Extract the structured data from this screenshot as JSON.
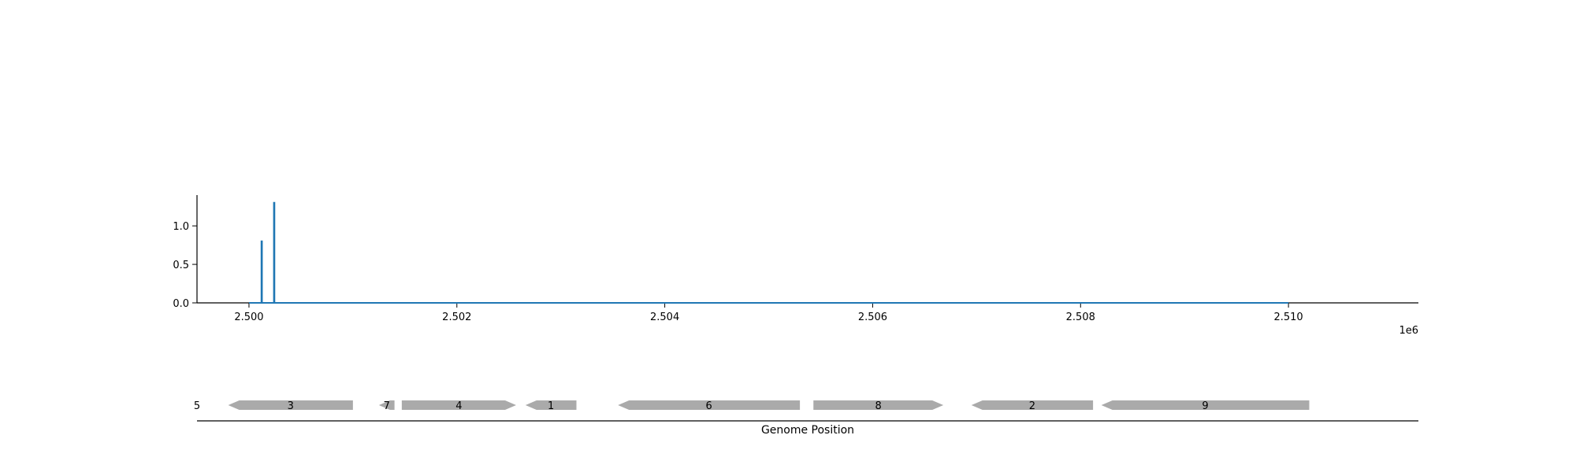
{
  "chart_data": [
    {
      "type": "line",
      "title": "",
      "xlabel": "",
      "ylabel": "",
      "xlim": [
        2499500,
        2511250
      ],
      "ylim": [
        0,
        1.4
      ],
      "grid": false,
      "x_ticks": [
        2500000,
        2502000,
        2504000,
        2506000,
        2508000,
        2510000
      ],
      "x_tick_labels": [
        "2.500",
        "2.502",
        "2.504",
        "2.506",
        "2.508",
        "2.510"
      ],
      "x_offset_label": "1e6",
      "y_ticks": [
        0.0,
        0.5,
        1.0
      ],
      "y_tick_labels": [
        "0.0",
        "0.5",
        "1.0"
      ],
      "color": "#1f77b4",
      "series": [
        {
          "x": [
            2500000,
            2500120,
            2500120,
            2500125,
            2500125,
            2500240,
            2500240,
            2500245,
            2500245,
            2510000
          ],
          "y": [
            0,
            0,
            0.8,
            0.8,
            0,
            0,
            1.3,
            1.3,
            0,
            0
          ]
        }
      ]
    },
    {
      "type": "gene-track",
      "xlabel": "Genome Position",
      "xlim": [
        2499500,
        2511250
      ],
      "color": "#aaaaaa",
      "genes": [
        {
          "label": "5",
          "start": 2499500,
          "end": 2499500,
          "strand": "+"
        },
        {
          "label": "3",
          "start": 2499800,
          "end": 2501000,
          "strand": "-"
        },
        {
          "label": "7",
          "start": 2501250,
          "end": 2501400,
          "strand": "-"
        },
        {
          "label": "4",
          "start": 2501470,
          "end": 2502570,
          "strand": "+"
        },
        {
          "label": "1",
          "start": 2502660,
          "end": 2503150,
          "strand": "-"
        },
        {
          "label": "6",
          "start": 2503550,
          "end": 2505300,
          "strand": "-"
        },
        {
          "label": "8",
          "start": 2505430,
          "end": 2506680,
          "strand": "+"
        },
        {
          "label": "2",
          "start": 2506950,
          "end": 2508120,
          "strand": "-"
        },
        {
          "label": "9",
          "start": 2508200,
          "end": 2510200,
          "strand": "-"
        }
      ]
    }
  ]
}
